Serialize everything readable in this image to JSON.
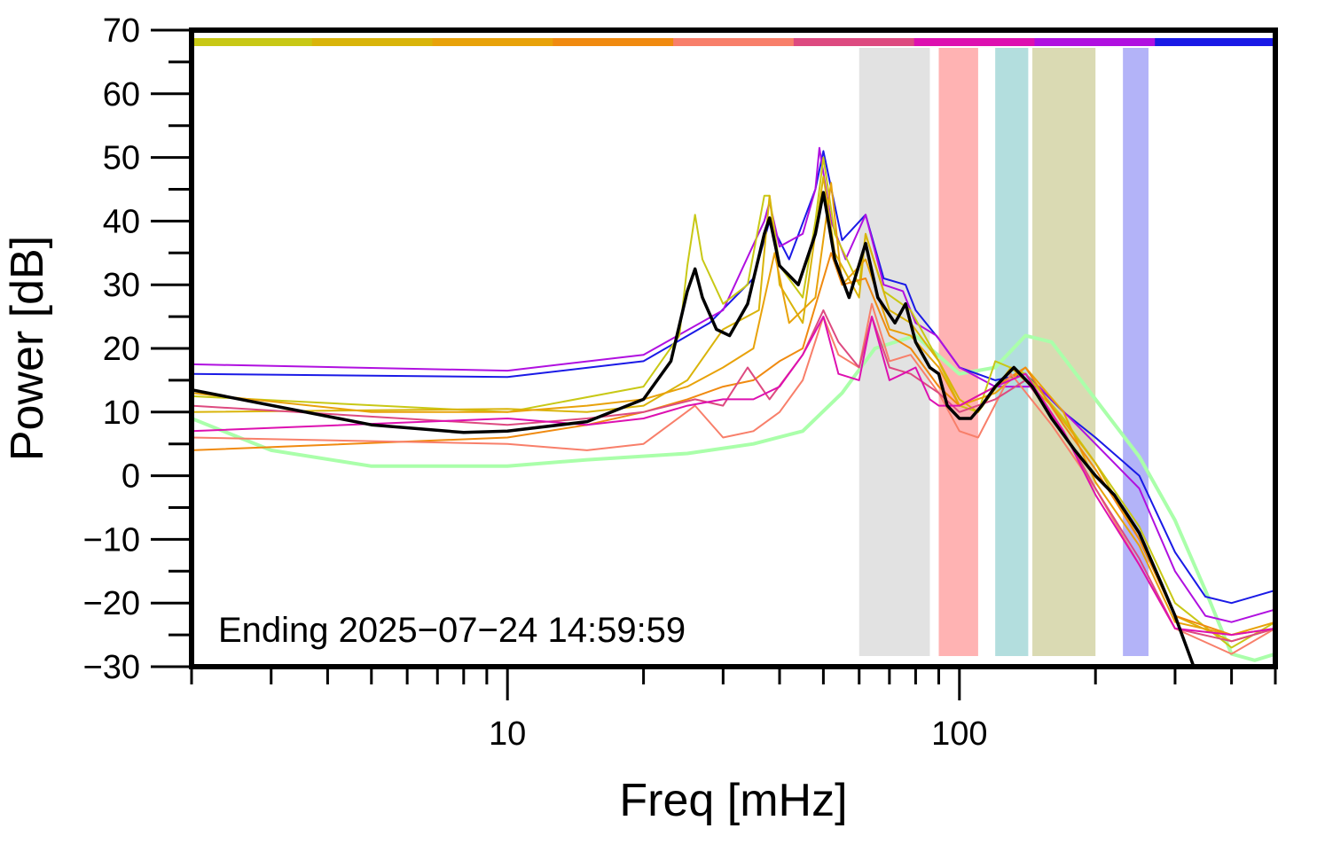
{
  "chart_data": {
    "type": "line",
    "title": "",
    "xlabel": "Freq [mHz]",
    "ylabel": "Power [dB]",
    "xscale": "log",
    "xlim": [
      2,
      500
    ],
    "ylim": [
      -30,
      70
    ],
    "xticks": [
      10,
      100
    ],
    "xtick_labels": [
      "10",
      "100"
    ],
    "yticks": [
      -30,
      -20,
      -10,
      0,
      10,
      20,
      30,
      40,
      50,
      60,
      70
    ],
    "ytick_labels": [
      "−30",
      "−20",
      "−10",
      "0",
      "10",
      "20",
      "30",
      "40",
      "50",
      "60",
      "70"
    ],
    "annotation": "Ending 2025−07−24 14:59:59",
    "top_color_strip": [
      "#c8c815",
      "#d9b40a",
      "#e8a20a",
      "#f08a10",
      "#f87f6a",
      "#dd4a80",
      "#dd10b0",
      "#b010e0",
      "#1a1ae6"
    ],
    "bands": [
      {
        "x0": 60,
        "x1": 86,
        "color": "#e2e2e2"
      },
      {
        "x0": 90,
        "x1": 110,
        "color": "#ffb3b3"
      },
      {
        "x0": 120,
        "x1": 142,
        "color": "#b3dede"
      },
      {
        "x0": 145,
        "x1": 200,
        "color": "#dadab3"
      },
      {
        "x0": 230,
        "x1": 262,
        "color": "#b3b3f8"
      }
    ],
    "series": [
      {
        "color": "#aaffaa",
        "width": 4,
        "points": [
          [
            2,
            9
          ],
          [
            3,
            4
          ],
          [
            5,
            1.5
          ],
          [
            10,
            1.5
          ],
          [
            15,
            2.5
          ],
          [
            25,
            3.5
          ],
          [
            35,
            5
          ],
          [
            45,
            7
          ],
          [
            55,
            13
          ],
          [
            65,
            20
          ],
          [
            80,
            22
          ],
          [
            100,
            16
          ],
          [
            120,
            17
          ],
          [
            140,
            22
          ],
          [
            160,
            21
          ],
          [
            200,
            12
          ],
          [
            250,
            3
          ],
          [
            300,
            -7
          ],
          [
            350,
            -18
          ],
          [
            400,
            -28
          ],
          [
            450,
            -29
          ],
          [
            500,
            -28
          ]
        ]
      },
      {
        "color": "#1a1ae6",
        "width": 2,
        "points": [
          [
            2,
            16
          ],
          [
            10,
            15.5
          ],
          [
            20,
            18
          ],
          [
            28,
            24
          ],
          [
            35,
            31
          ],
          [
            38,
            40
          ],
          [
            42,
            34
          ],
          [
            48,
            45
          ],
          [
            50,
            51
          ],
          [
            55,
            37
          ],
          [
            62,
            41
          ],
          [
            68,
            31
          ],
          [
            76,
            30
          ],
          [
            80,
            26
          ],
          [
            90,
            21.5
          ],
          [
            100,
            17
          ],
          [
            120,
            15
          ],
          [
            140,
            16
          ],
          [
            170,
            10
          ],
          [
            200,
            6
          ],
          [
            250,
            0
          ],
          [
            300,
            -12
          ],
          [
            350,
            -19
          ],
          [
            400,
            -20
          ],
          [
            500,
            -18
          ]
        ]
      },
      {
        "color": "#b010e0",
        "width": 2,
        "points": [
          [
            2,
            17.5
          ],
          [
            10,
            16.5
          ],
          [
            20,
            19
          ],
          [
            30,
            26
          ],
          [
            37,
            40
          ],
          [
            38,
            43
          ],
          [
            40,
            36
          ],
          [
            45,
            38
          ],
          [
            48,
            45
          ],
          [
            49,
            51.5
          ],
          [
            52,
            40
          ],
          [
            56,
            34
          ],
          [
            62,
            41
          ],
          [
            68,
            30
          ],
          [
            75,
            29
          ],
          [
            80,
            24
          ],
          [
            89,
            22
          ],
          [
            100,
            17
          ],
          [
            120,
            14
          ],
          [
            150,
            14
          ],
          [
            200,
            5
          ],
          [
            250,
            -2
          ],
          [
            300,
            -15
          ],
          [
            350,
            -22
          ],
          [
            400,
            -23
          ],
          [
            500,
            -21
          ]
        ]
      },
      {
        "color": "#c8c815",
        "width": 2,
        "points": [
          [
            2,
            12.5
          ],
          [
            10,
            10
          ],
          [
            20,
            14
          ],
          [
            24,
            22
          ],
          [
            25,
            33
          ],
          [
            26,
            41
          ],
          [
            27,
            34
          ],
          [
            30,
            27
          ],
          [
            34,
            30
          ],
          [
            37,
            44
          ],
          [
            38,
            44
          ],
          [
            40,
            33
          ],
          [
            45,
            28
          ],
          [
            48,
            40
          ],
          [
            50,
            50
          ],
          [
            53,
            38
          ],
          [
            60,
            30
          ],
          [
            62,
            38
          ],
          [
            68,
            29
          ],
          [
            78,
            26
          ],
          [
            90,
            18
          ],
          [
            100,
            11
          ],
          [
            110,
            10
          ],
          [
            120,
            18
          ],
          [
            140,
            16
          ],
          [
            170,
            9
          ],
          [
            200,
            2
          ],
          [
            250,
            -8
          ],
          [
            300,
            -20
          ],
          [
            400,
            -27
          ],
          [
            500,
            -23
          ]
        ]
      },
      {
        "color": "#d9b40a",
        "width": 2,
        "points": [
          [
            2,
            10
          ],
          [
            10,
            10.5
          ],
          [
            15,
            10
          ],
          [
            20,
            11
          ],
          [
            25,
            15
          ],
          [
            30,
            23
          ],
          [
            36,
            26
          ],
          [
            38,
            44
          ],
          [
            40,
            30
          ],
          [
            45,
            24
          ],
          [
            50,
            47
          ],
          [
            53,
            35
          ],
          [
            60,
            28
          ],
          [
            62,
            38
          ],
          [
            70,
            26
          ],
          [
            78,
            24
          ],
          [
            90,
            18
          ],
          [
            100,
            12
          ],
          [
            110,
            10
          ],
          [
            130,
            17
          ],
          [
            160,
            11
          ],
          [
            200,
            2
          ],
          [
            250,
            -10
          ],
          [
            300,
            -22
          ],
          [
            400,
            -26
          ],
          [
            500,
            -24
          ]
        ]
      },
      {
        "color": "#e8a20a",
        "width": 2,
        "points": [
          [
            2,
            13
          ],
          [
            5,
            10
          ],
          [
            10,
            10
          ],
          [
            15,
            11
          ],
          [
            20,
            12
          ],
          [
            25,
            14
          ],
          [
            30,
            17
          ],
          [
            35,
            20
          ],
          [
            39,
            35
          ],
          [
            42,
            24
          ],
          [
            48,
            28
          ],
          [
            52,
            46
          ],
          [
            55,
            30
          ],
          [
            62,
            34
          ],
          [
            70,
            23
          ],
          [
            78,
            22
          ],
          [
            90,
            17
          ],
          [
            100,
            11
          ],
          [
            120,
            13
          ],
          [
            140,
            17
          ],
          [
            170,
            10
          ],
          [
            200,
            -1
          ],
          [
            250,
            -11
          ],
          [
            300,
            -23
          ],
          [
            400,
            -25
          ],
          [
            500,
            -23
          ]
        ]
      },
      {
        "color": "#f08a10",
        "width": 2,
        "points": [
          [
            2,
            4
          ],
          [
            10,
            6
          ],
          [
            15,
            8
          ],
          [
            20,
            10
          ],
          [
            25,
            12
          ],
          [
            30,
            14
          ],
          [
            35,
            15
          ],
          [
            40,
            18
          ],
          [
            45,
            20
          ],
          [
            52,
            35
          ],
          [
            55,
            30
          ],
          [
            62,
            31
          ],
          [
            70,
            22
          ],
          [
            78,
            20
          ],
          [
            90,
            14
          ],
          [
            100,
            11
          ],
          [
            120,
            14
          ],
          [
            140,
            17
          ],
          [
            170,
            8
          ],
          [
            200,
            1
          ],
          [
            250,
            -10
          ],
          [
            300,
            -22
          ],
          [
            400,
            -25
          ],
          [
            500,
            -24
          ]
        ]
      },
      {
        "color": "#f87f6a",
        "width": 2,
        "points": [
          [
            2,
            6
          ],
          [
            10,
            5
          ],
          [
            15,
            4
          ],
          [
            20,
            5
          ],
          [
            26,
            11
          ],
          [
            30,
            6
          ],
          [
            35,
            7
          ],
          [
            40,
            10
          ],
          [
            45,
            15
          ],
          [
            50,
            25
          ],
          [
            54,
            19
          ],
          [
            60,
            17
          ],
          [
            64,
            27
          ],
          [
            70,
            18
          ],
          [
            78,
            19
          ],
          [
            90,
            13
          ],
          [
            100,
            7
          ],
          [
            110,
            6
          ],
          [
            130,
            16
          ],
          [
            160,
            8
          ],
          [
            200,
            -2
          ],
          [
            250,
            -14
          ],
          [
            300,
            -24
          ],
          [
            400,
            -28
          ],
          [
            500,
            -24
          ]
        ]
      },
      {
        "color": "#dd4a80",
        "width": 2,
        "points": [
          [
            2,
            11
          ],
          [
            10,
            8
          ],
          [
            15,
            9
          ],
          [
            20,
            10
          ],
          [
            26,
            12
          ],
          [
            30,
            11
          ],
          [
            34,
            17
          ],
          [
            38,
            12
          ],
          [
            45,
            19
          ],
          [
            50,
            26
          ],
          [
            54,
            21
          ],
          [
            60,
            17
          ],
          [
            64,
            25
          ],
          [
            70,
            17
          ],
          [
            78,
            16
          ],
          [
            90,
            13
          ],
          [
            100,
            10
          ],
          [
            120,
            12
          ],
          [
            140,
            15
          ],
          [
            170,
            7
          ],
          [
            200,
            -2
          ],
          [
            250,
            -13
          ],
          [
            300,
            -24
          ],
          [
            400,
            -26
          ],
          [
            500,
            -24
          ]
        ]
      },
      {
        "color": "#dd10b0",
        "width": 2,
        "points": [
          [
            2,
            7
          ],
          [
            10,
            9
          ],
          [
            15,
            8
          ],
          [
            20,
            9
          ],
          [
            25,
            11
          ],
          [
            30,
            12
          ],
          [
            35,
            12
          ],
          [
            40,
            14
          ],
          [
            45,
            19
          ],
          [
            50,
            25
          ],
          [
            54,
            16
          ],
          [
            60,
            15
          ],
          [
            64,
            25
          ],
          [
            70,
            15
          ],
          [
            75,
            16
          ],
          [
            80,
            17
          ],
          [
            86,
            12
          ],
          [
            90,
            11
          ],
          [
            100,
            11
          ],
          [
            120,
            14
          ],
          [
            140,
            16
          ],
          [
            170,
            7
          ],
          [
            200,
            -3
          ],
          [
            250,
            -14
          ],
          [
            300,
            -24
          ],
          [
            400,
            -25
          ],
          [
            500,
            -24
          ]
        ]
      },
      {
        "color": "#000000",
        "width": 3.5,
        "points": [
          [
            2,
            13.5
          ],
          [
            5,
            8
          ],
          [
            8,
            6.8
          ],
          [
            10,
            7
          ],
          [
            15,
            8.5
          ],
          [
            20,
            12
          ],
          [
            23,
            18
          ],
          [
            25,
            29
          ],
          [
            26,
            32.5
          ],
          [
            27,
            28
          ],
          [
            29,
            23
          ],
          [
            31,
            22
          ],
          [
            34,
            27
          ],
          [
            37,
            38
          ],
          [
            38,
            40.5
          ],
          [
            40,
            33
          ],
          [
            44,
            30
          ],
          [
            48,
            38
          ],
          [
            50,
            44.5
          ],
          [
            53,
            34
          ],
          [
            57,
            28
          ],
          [
            62,
            36.5
          ],
          [
            66,
            28
          ],
          [
            72,
            24
          ],
          [
            76,
            27
          ],
          [
            80,
            21
          ],
          [
            86,
            17
          ],
          [
            90,
            16
          ],
          [
            94,
            11
          ],
          [
            100,
            9
          ],
          [
            106,
            9
          ],
          [
            112,
            11
          ],
          [
            120,
            14
          ],
          [
            132,
            17
          ],
          [
            145,
            14
          ],
          [
            160,
            9
          ],
          [
            180,
            4
          ],
          [
            200,
            0
          ],
          [
            220,
            -3
          ],
          [
            250,
            -9
          ],
          [
            280,
            -17
          ],
          [
            300,
            -22
          ],
          [
            330,
            -30
          ]
        ]
      }
    ]
  }
}
